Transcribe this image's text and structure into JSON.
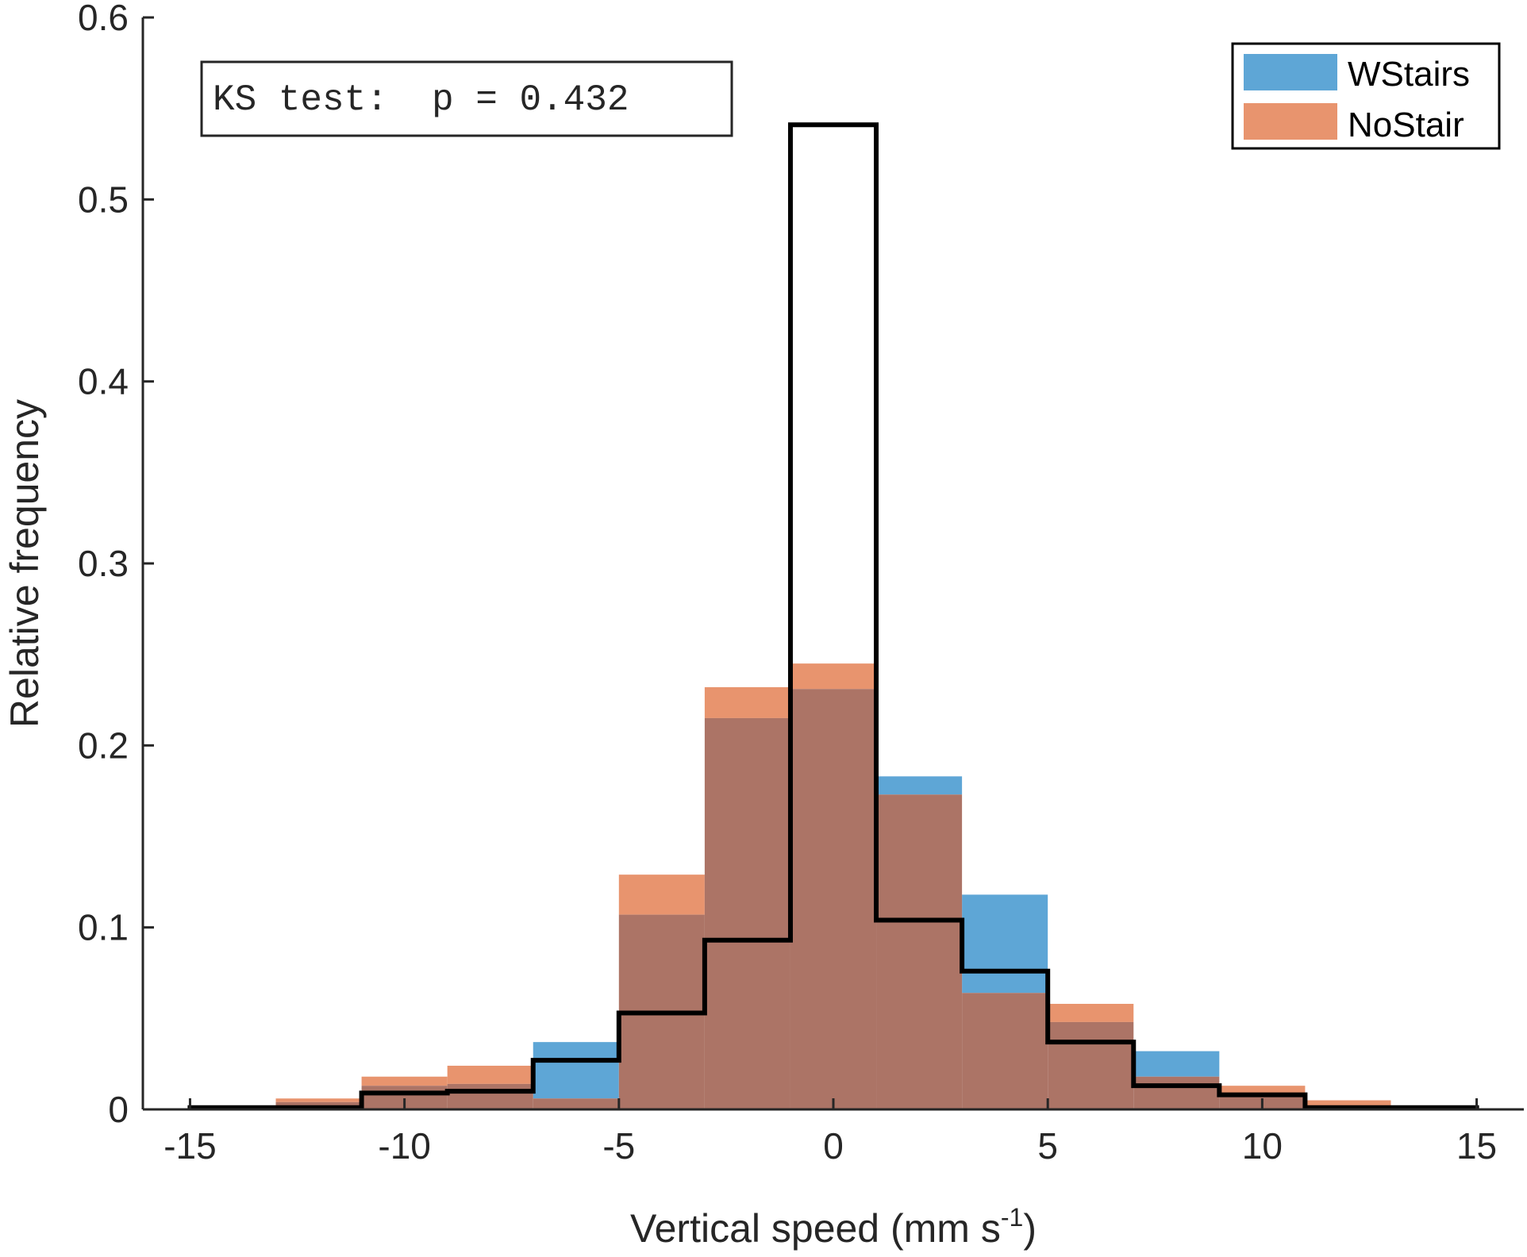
{
  "chart_data": {
    "type": "bar",
    "histogram": true,
    "xlabel": "Vertical speed (mm s",
    "xlabel_superscript": "-1",
    "xlabel_suffix": ")",
    "ylabel": "Relative frequency",
    "xlim": [
      -15,
      15
    ],
    "ylim": [
      0,
      0.6
    ],
    "xticks": [
      -15,
      -10,
      -5,
      0,
      5,
      10,
      15
    ],
    "xtick_labels": [
      "-15",
      "-10",
      "-5",
      "0",
      "5",
      "10",
      "15"
    ],
    "yticks": [
      0,
      0.1,
      0.2,
      0.3,
      0.4,
      0.5,
      0.6
    ],
    "ytick_labels": [
      "0",
      "0.1",
      "0.2",
      "0.3",
      "0.4",
      "0.5",
      "0.6"
    ],
    "bin_edges": [
      -15,
      -13,
      -11,
      -9,
      -7,
      -5,
      -3,
      -1,
      1,
      3,
      5,
      7,
      9,
      11,
      13,
      15
    ],
    "series": [
      {
        "name": "WStairs",
        "style": "filled",
        "color": "#5ea6d6",
        "values": [
          0.001,
          0.004,
          0.013,
          0.014,
          0.037,
          0.107,
          0.215,
          0.231,
          0.183,
          0.118,
          0.048,
          0.032,
          0.008,
          0.002,
          0.001
        ]
      },
      {
        "name": "NoStair",
        "style": "filled",
        "color": "#e8946e",
        "values": [
          0.002,
          0.006,
          0.018,
          0.024,
          0.006,
          0.129,
          0.232,
          0.245,
          0.173,
          0.064,
          0.058,
          0.018,
          0.013,
          0.005,
          0.001
        ]
      },
      {
        "style": "outline",
        "color": "#000000",
        "values": [
          0.001,
          0.001,
          0.009,
          0.01,
          0.027,
          0.053,
          0.093,
          0.541,
          0.104,
          0.076,
          0.037,
          0.013,
          0.008,
          0.001,
          0.001
        ]
      }
    ],
    "overlap_color": "#ac7466",
    "legend": {
      "position": "top-right",
      "entries": [
        "WStairs",
        "NoStair"
      ]
    },
    "annotation": {
      "text": "KS test:  p = 0.432",
      "position": "top-left"
    },
    "grid": false
  }
}
